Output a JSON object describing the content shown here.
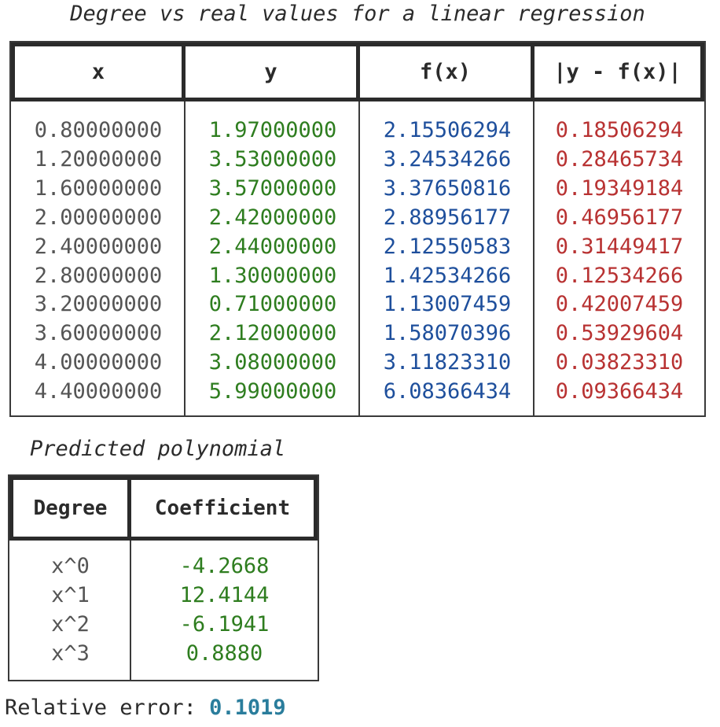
{
  "title": "Degree vs real values for a linear regression",
  "main_table": {
    "headers": [
      "x",
      "y",
      "f(x)",
      "|y - f(x)|"
    ],
    "x": [
      "0.80000000",
      "1.20000000",
      "1.60000000",
      "2.00000000",
      "2.40000000",
      "2.80000000",
      "3.20000000",
      "3.60000000",
      "4.00000000",
      "4.40000000"
    ],
    "y": [
      "1.97000000",
      "3.53000000",
      "3.57000000",
      "2.42000000",
      "2.44000000",
      "1.30000000",
      "0.71000000",
      "2.12000000",
      "3.08000000",
      "5.99000000"
    ],
    "fx": [
      "2.15506294",
      "3.24534266",
      "3.37650816",
      "2.88956177",
      "2.12550583",
      "1.42534266",
      "1.13007459",
      "1.58070396",
      "3.11823310",
      "6.08366434"
    ],
    "err": [
      "0.18506294",
      "0.28465734",
      "0.19349184",
      "0.46956177",
      "0.31449417",
      "0.12534266",
      "0.42007459",
      "0.53929604",
      "0.03823310",
      "0.09366434"
    ]
  },
  "polynomial": {
    "title": "Predicted polynomial",
    "headers": [
      "Degree",
      "Coefficient"
    ],
    "degrees": [
      "x^0",
      "x^1",
      "x^2",
      "x^3"
    ],
    "coefficients": [
      "-4.2668",
      "12.4144",
      "-6.1941",
      "0.8880"
    ]
  },
  "relative_error": {
    "label": "Relative error: ",
    "value": "0.1019"
  },
  "colors": {
    "x": "#555555",
    "y": "#2e7d1f",
    "fx": "#1e4f9c",
    "err": "#b83232",
    "rel_error_value": "#2a7d9c"
  }
}
